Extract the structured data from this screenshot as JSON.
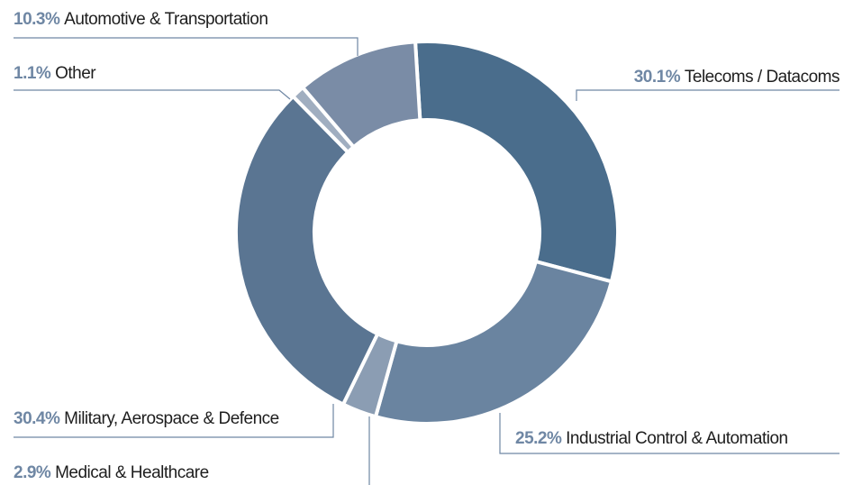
{
  "chart_data": {
    "type": "donut",
    "categories": [
      "Telecoms / Datacoms",
      "Industrial Control & Automation",
      "Medical & Healthcare",
      "Military, Aerospace & Defence",
      "Other",
      "Automotive & Transportation"
    ],
    "values": [
      30.1,
      25.2,
      2.9,
      30.4,
      1.1,
      10.3
    ],
    "value_labels": [
      "30.1%",
      "25.2%",
      "2.9%",
      "30.4%",
      "1.1%",
      "10.3%"
    ],
    "colors": [
      "#4a6d8c",
      "#6a84a0",
      "#8b9db3",
      "#5a7592",
      "#a0aec0",
      "#7a8ca6"
    ]
  }
}
